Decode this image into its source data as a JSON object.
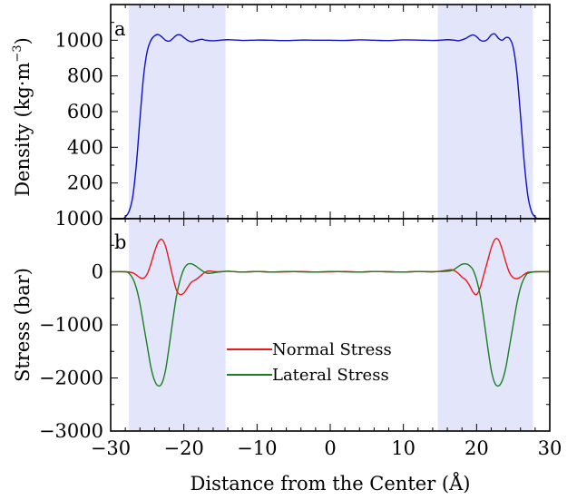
{
  "chart_data": [
    {
      "type": "line",
      "panel_label": "a",
      "xlim": [
        -30,
        30
      ],
      "ylim": [
        0,
        1200
      ],
      "ylabel_parts": [
        "Density (kg",
        "·",
        "m",
        "−3",
        ")"
      ],
      "ytick_values": [
        200,
        400,
        600,
        800,
        1000
      ],
      "ytick_labels": [
        "200",
        "400",
        "600",
        "800",
        "1000"
      ],
      "shaded_regions": [
        [
          -27.5,
          -14.3
        ],
        [
          14.7,
          27.7
        ]
      ],
      "shade_color": "#e3e6fb",
      "series": [
        {
          "color": "#1010c8",
          "x": [
            -30,
            -28.5,
            -28,
            -27.5,
            -27,
            -26.5,
            -26,
            -25.5,
            -25,
            -24.5,
            -24,
            -23.5,
            -23,
            -22.5,
            -22,
            -21.5,
            -21,
            -20.5,
            -20,
            -19.5,
            -19,
            -18.5,
            -18,
            -17.5,
            -17,
            -16,
            -15,
            -14,
            -12,
            -10,
            -8,
            -6,
            -4,
            -2,
            0,
            2,
            4,
            6,
            8,
            10,
            12,
            14,
            15,
            16,
            17,
            17.5,
            18,
            18.5,
            19,
            19.5,
            20,
            20.5,
            21,
            21.5,
            22,
            22.5,
            23,
            23.5,
            24,
            24.5,
            25,
            25.5,
            26,
            26.5,
            27,
            27.5,
            28,
            28.5,
            30
          ],
          "y": [
            0,
            0,
            10,
            40,
            120,
            300,
            560,
            800,
            940,
            1000,
            1025,
            1032,
            1018,
            1000,
            995,
            1010,
            1028,
            1030,
            1015,
            1000,
            992,
            996,
            1002,
            1005,
            1000,
            997,
            1000,
            1003,
            999,
            1001,
            1000,
            998,
            1001,
            1000,
            1000,
            999,
            1002,
            1000,
            998,
            1002,
            1001,
            999,
            1000,
            1003,
            1000,
            997,
            1002,
            1010,
            1022,
            1030,
            1020,
            1000,
            995,
            1005,
            1030,
            1035,
            1010,
            1000,
            1015,
            1010,
            960,
            820,
            580,
            320,
            130,
            40,
            10,
            0,
            0
          ]
        }
      ]
    },
    {
      "type": "line",
      "panel_label": "b",
      "xlim": [
        -30,
        30
      ],
      "ylim": [
        -3000,
        1000
      ],
      "xlabel": "Distance from the Center (Å)",
      "ylabel": "Stress (bar)",
      "xtick_values": [
        -30,
        -20,
        -10,
        0,
        10,
        20,
        30
      ],
      "xtick_labels": [
        "−30",
        "−20",
        "−10",
        "0",
        "10",
        "20",
        "30"
      ],
      "ytick_values": [
        -3000,
        -2000,
        -1000,
        0,
        1000
      ],
      "ytick_labels": [
        "−3000",
        "−2000",
        "−1000",
        "0",
        "1000"
      ],
      "shaded_regions": [
        [
          -27.5,
          -14.3
        ],
        [
          14.7,
          27.7
        ]
      ],
      "shade_color": "#e3e6fb",
      "legend_position": "center",
      "series": [
        {
          "name": "Normal Stress",
          "color": "#e8191c",
          "x": [
            -30,
            -28,
            -27,
            -26.5,
            -26,
            -25.5,
            -25,
            -24.5,
            -24,
            -23.5,
            -23,
            -22.5,
            -22,
            -21.5,
            -21,
            -20.5,
            -20,
            -19.5,
            -19,
            -18.5,
            -18,
            -17.5,
            -17,
            -16.5,
            -16,
            -15,
            -14,
            -12,
            -10,
            -8,
            -6,
            -4,
            -2,
            0,
            2,
            4,
            6,
            8,
            10,
            12,
            14,
            15,
            16,
            16.5,
            17,
            17.5,
            18,
            18.5,
            19,
            19.5,
            20,
            20.5,
            21,
            21.5,
            22,
            22.5,
            23,
            23.5,
            24,
            24.5,
            25,
            25.5,
            26,
            26.5,
            27,
            28,
            30
          ],
          "y": [
            0,
            0,
            -20,
            -60,
            -110,
            -120,
            -40,
            150,
            380,
            560,
            610,
            480,
            200,
            -100,
            -350,
            -430,
            -400,
            -300,
            -200,
            -160,
            -110,
            -50,
            0,
            15,
            5,
            0,
            10,
            -5,
            5,
            -5,
            0,
            5,
            -5,
            0,
            5,
            -5,
            5,
            0,
            -5,
            5,
            0,
            10,
            30,
            40,
            20,
            -30,
            -100,
            -150,
            -250,
            -380,
            -430,
            -300,
            -50,
            200,
            450,
            610,
            600,
            420,
            180,
            -20,
            -110,
            -130,
            -100,
            -50,
            -10,
            0,
            0
          ]
        },
        {
          "name": "Lateral Stress",
          "color": "#1b7f20",
          "x": [
            -30,
            -28,
            -27.5,
            -27,
            -26.5,
            -26,
            -25.5,
            -25,
            -24.5,
            -24,
            -23.5,
            -23,
            -22.5,
            -22,
            -21.5,
            -21,
            -20.5,
            -20,
            -19.5,
            -19,
            -18.5,
            -18,
            -17.5,
            -17,
            -16.5,
            -16,
            -15,
            -14,
            -12,
            -10,
            -8,
            -6,
            -4,
            -2,
            0,
            2,
            4,
            6,
            8,
            10,
            12,
            14,
            15,
            16,
            16.5,
            17,
            17.5,
            18,
            18.5,
            19,
            19.5,
            20,
            20.5,
            21,
            21.5,
            22,
            22.5,
            23,
            23.5,
            24,
            24.5,
            25,
            25.5,
            26,
            26.5,
            27,
            28,
            30
          ],
          "y": [
            0,
            0,
            -30,
            -120,
            -300,
            -600,
            -1000,
            -1400,
            -1800,
            -2050,
            -2150,
            -2100,
            -1850,
            -1400,
            -900,
            -450,
            -150,
            50,
            140,
            150,
            120,
            70,
            20,
            -20,
            -30,
            -20,
            0,
            10,
            -5,
            5,
            -5,
            5,
            0,
            -5,
            5,
            0,
            -5,
            5,
            0,
            -5,
            5,
            0,
            5,
            10,
            20,
            50,
            100,
            140,
            150,
            120,
            40,
            -150,
            -450,
            -900,
            -1400,
            -1850,
            -2100,
            -2150,
            -2050,
            -1800,
            -1400,
            -1000,
            -600,
            -300,
            -120,
            -30,
            0,
            0
          ]
        }
      ]
    }
  ]
}
